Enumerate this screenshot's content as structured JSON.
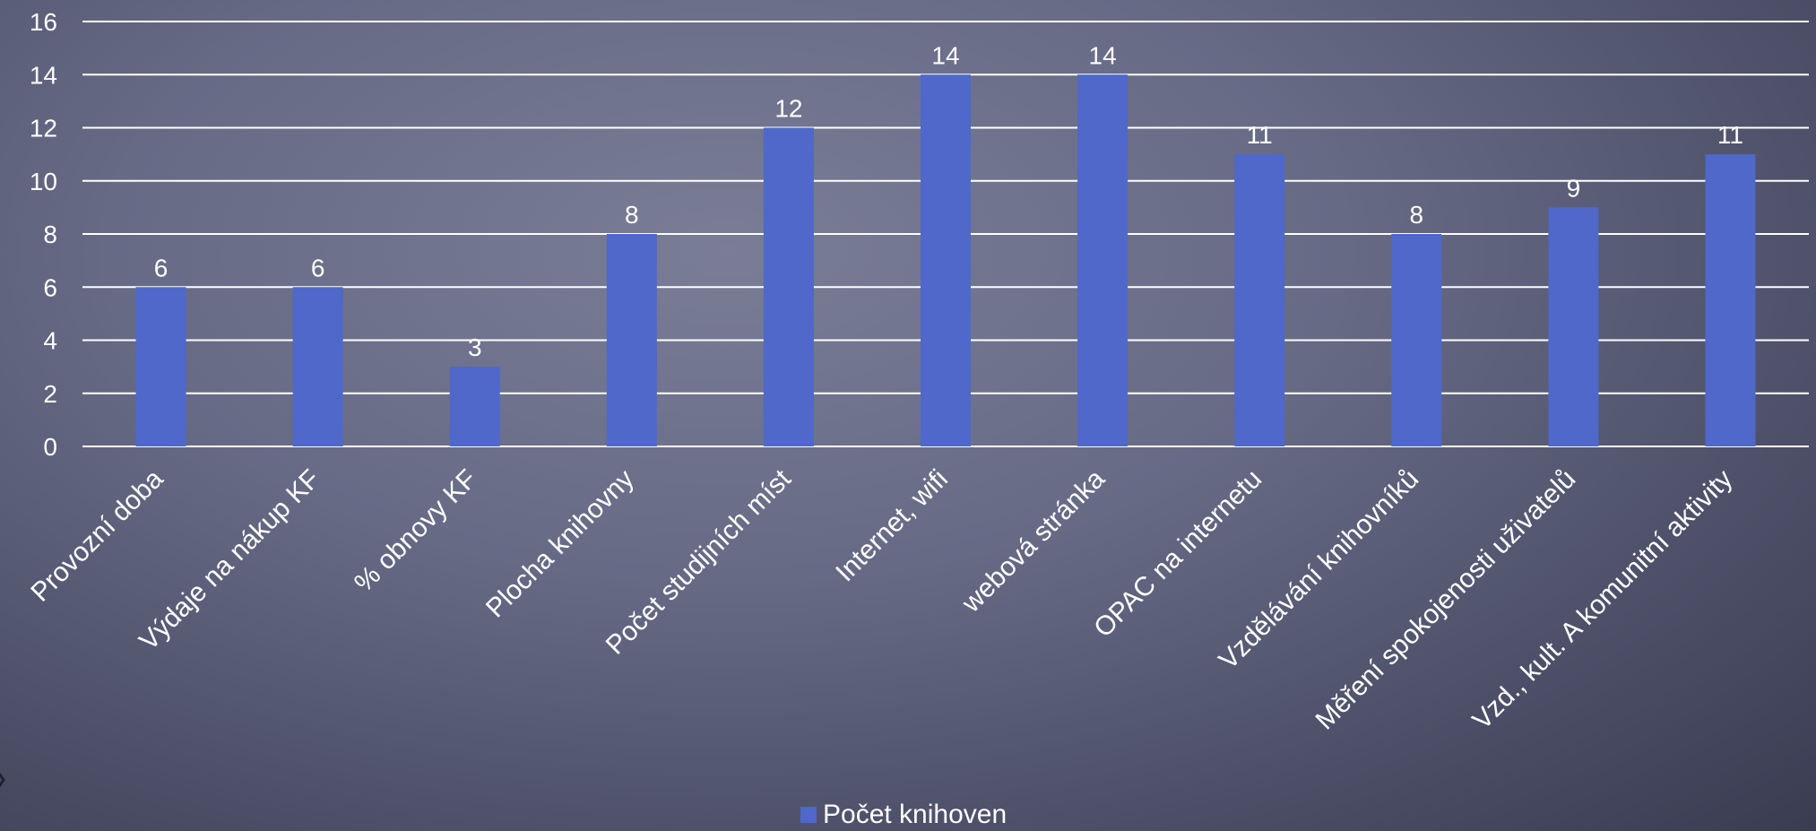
{
  "chart_data": {
    "type": "bar",
    "categories": [
      "Provozní doba",
      "Výdaje na nákup KF",
      "% obnovy KF",
      "Plocha knihovny",
      "Počet studijních míst",
      "Internet, wifi",
      "webová stránka",
      "OPAC na internetu",
      "Vzdělávání knihovníků",
      "Měření spokojenosti uživatelů",
      "Vzd., kult. A komunitní aktivity"
    ],
    "series": [
      {
        "name": "Počet knihoven",
        "values": [
          6,
          6,
          3,
          8,
          12,
          14,
          14,
          11,
          8,
          9,
          11
        ]
      }
    ],
    "yticks": [
      0,
      2,
      4,
      6,
      8,
      10,
      12,
      14,
      16
    ],
    "ylim": [
      0,
      16
    ],
    "grid": true,
    "legend": "bottom-center",
    "data_labels": true,
    "colors": {
      "bar": "#4f68c9",
      "grid": "#ffffff",
      "text": "#ffffff"
    }
  }
}
